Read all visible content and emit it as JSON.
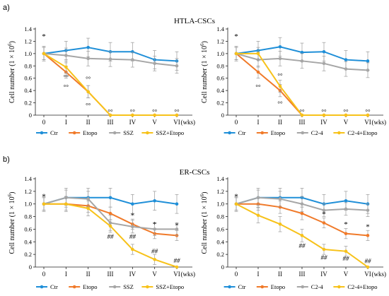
{
  "figure": {
    "panels": [
      {
        "tag": "a)",
        "title": "HTLA-CSCs"
      },
      {
        "tag": "b)",
        "title": "ER-CSCs"
      }
    ]
  },
  "chart_data": [
    {
      "type": "line",
      "panel": "a)",
      "title": "HTLA-CSCs",
      "ylabel": "Cell number (1 × 10",
      "ylabel_sup": "6",
      "ylabel_close": ")",
      "x_unit": "(wks)",
      "categories": [
        "0",
        "I",
        "II",
        "III",
        "IV",
        "V",
        "VI"
      ],
      "ylim": [
        0,
        1.4
      ],
      "yticks": [
        "0",
        "0.2",
        "0.4",
        "0.6",
        "0.8",
        "1.0",
        "1.2",
        "1.4"
      ],
      "series": [
        {
          "name": "Ctr",
          "color": "#1f8fd8",
          "values": [
            1.0,
            1.05,
            1.1,
            1.03,
            1.03,
            0.9,
            0.88
          ],
          "err": [
            0.12,
            0.15,
            0.15,
            0.15,
            0.15,
            0.15,
            0.15
          ]
        },
        {
          "name": "Etopo",
          "color": "#f07a2a",
          "values": [
            1.0,
            0.7,
            0.38,
            0.0,
            0.0,
            0.0,
            0.0
          ],
          "err": [
            0.1,
            0.1,
            0.1,
            0,
            0,
            0,
            0
          ]
        },
        {
          "name": "SSZ",
          "color": "#a6a6a6",
          "values": [
            1.0,
            0.97,
            0.92,
            0.91,
            0.9,
            0.84,
            0.8
          ],
          "err": [
            0.1,
            0.12,
            0.12,
            0.12,
            0.12,
            0.12,
            0.12
          ]
        },
        {
          "name": "SSZ+Etopo",
          "color": "#f7c21a",
          "values": [
            1.0,
            0.78,
            0.38,
            0.0,
            0.0,
            0.0,
            0.0
          ],
          "err": [
            0.1,
            0.1,
            0.1,
            0,
            0,
            0,
            0
          ]
        }
      ],
      "annotations": [
        {
          "text": "*",
          "cat": 0,
          "y": 1.24
        },
        {
          "text": "°°",
          "cat": 1,
          "y": 0.58
        },
        {
          "text": "°°",
          "cat": 1,
          "y": 0.42
        },
        {
          "text": "°°",
          "cat": 2,
          "y": 0.55
        },
        {
          "text": "°°",
          "cat": 2,
          "y": 0.12
        },
        {
          "text": "°°",
          "cat": 3,
          "y": 0.02
        },
        {
          "text": "°°",
          "cat": 4,
          "y": 0.02
        },
        {
          "text": "°°",
          "cat": 5,
          "y": 0.02
        },
        {
          "text": "°°",
          "cat": 6,
          "y": 0.02
        }
      ]
    },
    {
      "type": "line",
      "panel": "a)",
      "title": "HTLA-CSCs",
      "ylabel": "Cell number (1 × 10",
      "ylabel_sup": "6",
      "ylabel_close": ")",
      "x_unit": "(wks)",
      "categories": [
        "0",
        "I",
        "II",
        "III",
        "IV",
        "V",
        "VI"
      ],
      "ylim": [
        0,
        1.4
      ],
      "yticks": [
        "0",
        "0.2",
        "0.4",
        "0.6",
        "0.8",
        "1.0",
        "1.2",
        "1.4"
      ],
      "series": [
        {
          "name": "Ctr",
          "color": "#1f8fd8",
          "values": [
            1.0,
            1.05,
            1.11,
            1.02,
            1.03,
            0.9,
            0.88
          ],
          "err": [
            0.12,
            0.15,
            0.15,
            0.15,
            0.15,
            0.15,
            0.15
          ]
        },
        {
          "name": "Etopo",
          "color": "#f07a2a",
          "values": [
            1.0,
            0.7,
            0.4,
            0.0,
            0.0,
            0.0,
            0.0
          ],
          "err": [
            0.1,
            0.1,
            0.1,
            0,
            0,
            0,
            0
          ]
        },
        {
          "name": "C2-4",
          "color": "#a6a6a6",
          "values": [
            1.0,
            0.9,
            0.92,
            0.88,
            0.84,
            0.75,
            0.73
          ],
          "err": [
            0.1,
            0.12,
            0.12,
            0.12,
            0.12,
            0.12,
            0.12
          ]
        },
        {
          "name": "C2-4+Etopo",
          "color": "#f7c21a",
          "values": [
            1.0,
            1.0,
            0.47,
            0.0,
            0.0,
            0.0,
            0.0
          ],
          "err": [
            0.1,
            0.1,
            0.1,
            0,
            0,
            0,
            0
          ]
        }
      ],
      "annotations": [
        {
          "text": "*",
          "cat": 0,
          "y": 1.24
        },
        {
          "text": "°°",
          "cat": 1,
          "y": 0.42
        },
        {
          "text": "°°",
          "cat": 2,
          "y": 0.6
        },
        {
          "text": "°°",
          "cat": 2,
          "y": 0.15
        },
        {
          "text": "°°",
          "cat": 3,
          "y": 0.02
        },
        {
          "text": "°°",
          "cat": 4,
          "y": 0.02
        },
        {
          "text": "°°",
          "cat": 5,
          "y": 0.02
        },
        {
          "text": "°°",
          "cat": 6,
          "y": 0.02
        }
      ]
    },
    {
      "type": "line",
      "panel": "b)",
      "title": "ER-CSCs",
      "ylabel": "Cell number (1 × 10",
      "ylabel_sup": "6",
      "ylabel_close": ")",
      "x_unit": "(wks)",
      "categories": [
        "0",
        "I",
        "II",
        "III",
        "IV",
        "V",
        "VI"
      ],
      "ylim": [
        0,
        1.4
      ],
      "yticks": [
        "0",
        "0.2",
        "0.4",
        "0.6",
        "0.8",
        "1.0",
        "1.2",
        "1.4"
      ],
      "series": [
        {
          "name": "Ctr",
          "color": "#1f8fd8",
          "values": [
            1.0,
            1.1,
            1.1,
            1.1,
            1.0,
            1.05,
            1.0
          ],
          "err": [
            0.12,
            0.15,
            0.15,
            0.15,
            0.15,
            0.15,
            0.15
          ]
        },
        {
          "name": "Etopo",
          "color": "#f07a2a",
          "values": [
            1.0,
            1.0,
            0.97,
            0.85,
            0.68,
            0.53,
            0.5
          ],
          "err": [
            0.1,
            0.1,
            0.1,
            0.1,
            0.08,
            0.08,
            0.08
          ]
        },
        {
          "name": "SSZ",
          "color": "#a6a6a6",
          "values": [
            1.0,
            1.1,
            1.08,
            0.7,
            0.64,
            0.6,
            0.6
          ],
          "err": [
            0.1,
            0.12,
            0.12,
            0.12,
            0.1,
            0.1,
            0.1
          ]
        },
        {
          "name": "SSZ+Etopo",
          "color": "#f7c21a",
          "values": [
            1.0,
            1.0,
            0.93,
            0.65,
            0.28,
            0.12,
            0.0
          ],
          "err": [
            0.1,
            0.12,
            0.12,
            0.1,
            0.08,
            0.08,
            0
          ]
        }
      ],
      "annotations": [
        {
          "text": "*",
          "cat": 0,
          "y": 1.08
        },
        {
          "text": "*",
          "cat": 4,
          "y": 0.78
        },
        {
          "text": "*",
          "cat": 5,
          "y": 0.64
        },
        {
          "text": "*",
          "cat": 6,
          "y": 0.62
        },
        {
          "text": "##",
          "cat": 4,
          "y": 0.45
        },
        {
          "text": "##",
          "cat": 5,
          "y": 0.22
        },
        {
          "text": "##",
          "cat": 6,
          "y": 0.07
        },
        {
          "text": "##",
          "cat": 3,
          "y": 0.45
        }
      ]
    },
    {
      "type": "line",
      "panel": "b)",
      "title": "ER-CSCs",
      "ylabel": "Cell number (1 × 10",
      "ylabel_sup": "6",
      "ylabel_close": ")",
      "x_unit": "(wks)",
      "categories": [
        "0",
        "I",
        "II",
        "III",
        "IV",
        "V",
        "VI"
      ],
      "ylim": [
        0,
        1.4
      ],
      "yticks": [
        "0",
        "0.2",
        "0.4",
        "0.6",
        "0.8",
        "1.0",
        "1.2",
        "1.4"
      ],
      "series": [
        {
          "name": "Ctr",
          "color": "#1f8fd8",
          "values": [
            1.0,
            1.1,
            1.1,
            1.1,
            1.0,
            1.05,
            1.0
          ],
          "err": [
            0.12,
            0.15,
            0.15,
            0.15,
            0.15,
            0.15,
            0.15
          ]
        },
        {
          "name": "Etopo",
          "color": "#f07a2a",
          "values": [
            1.0,
            1.0,
            0.95,
            0.85,
            0.7,
            0.53,
            0.5
          ],
          "err": [
            0.1,
            0.1,
            0.1,
            0.1,
            0.08,
            0.08,
            0.08
          ]
        },
        {
          "name": "C2-4",
          "color": "#a6a6a6",
          "values": [
            1.0,
            1.1,
            1.08,
            1.0,
            0.9,
            0.92,
            0.9
          ],
          "err": [
            0.1,
            0.12,
            0.12,
            0.12,
            0.1,
            0.1,
            0.1
          ]
        },
        {
          "name": "C2-4+Etopo",
          "color": "#f7c21a",
          "values": [
            1.0,
            0.82,
            0.68,
            0.5,
            0.28,
            0.25,
            0.0
          ],
          "err": [
            0.1,
            0.12,
            0.12,
            0.1,
            0.08,
            0.08,
            0
          ]
        }
      ],
      "annotations": [
        {
          "text": "*",
          "cat": 0,
          "y": 1.08
        },
        {
          "text": "*",
          "cat": 4,
          "y": 0.8
        },
        {
          "text": "*",
          "cat": 5,
          "y": 0.64
        },
        {
          "text": "*",
          "cat": 6,
          "y": 0.6
        },
        {
          "text": "##",
          "cat": 3,
          "y": 0.3
        },
        {
          "text": "##",
          "cat": 4,
          "y": 0.12
        },
        {
          "text": "##",
          "cat": 5,
          "y": 0.1
        },
        {
          "text": "##",
          "cat": 6,
          "y": 0.06
        }
      ]
    }
  ]
}
